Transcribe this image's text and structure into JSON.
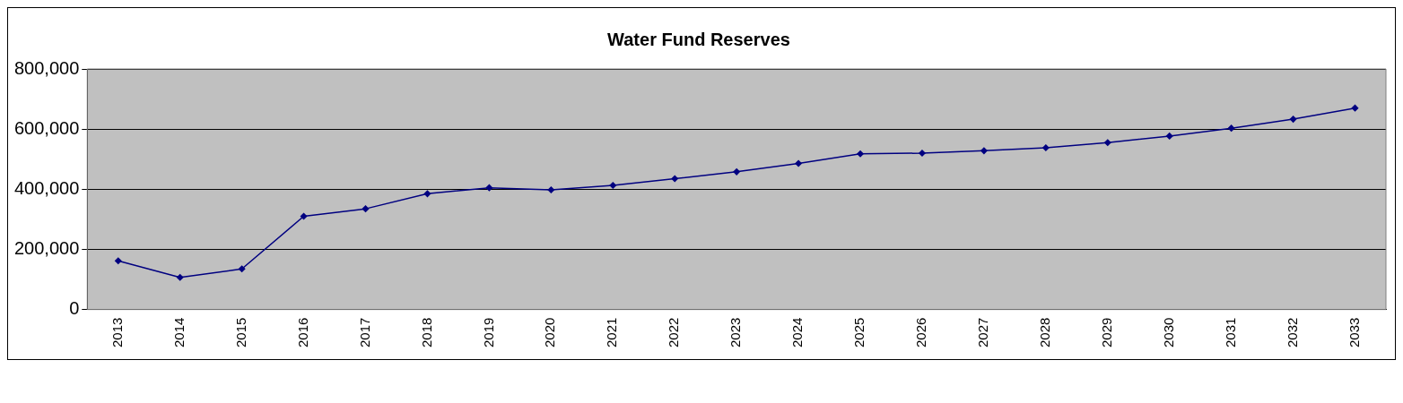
{
  "chart_data": {
    "type": "line",
    "title": "Water Fund Reserves",
    "categories": [
      "2013",
      "2014",
      "2015",
      "2016",
      "2017",
      "2018",
      "2019",
      "2020",
      "2021",
      "2022",
      "2023",
      "2024",
      "2025",
      "2026",
      "2027",
      "2028",
      "2029",
      "2030",
      "2031",
      "2032",
      "2033"
    ],
    "series": [
      {
        "color": "#000080",
        "values": [
          162000,
          107000,
          135000,
          310000,
          335000,
          385000,
          405000,
          398000,
          413000,
          435000,
          458000,
          486000,
          518000,
          520000,
          528000,
          538000,
          555000,
          577000,
          603000,
          633000,
          670000
        ]
      }
    ],
    "ylim": [
      0,
      800000
    ],
    "yticks": [
      {
        "value": 0,
        "label": "0"
      },
      {
        "value": 200000,
        "label": "200,000"
      },
      {
        "value": 400000,
        "label": "400,000"
      },
      {
        "value": 600000,
        "label": "600,000"
      },
      {
        "value": 800000,
        "label": "800,000"
      }
    ],
    "grid": "y",
    "legend": false,
    "marker": "diamond",
    "line_style": "solid"
  }
}
